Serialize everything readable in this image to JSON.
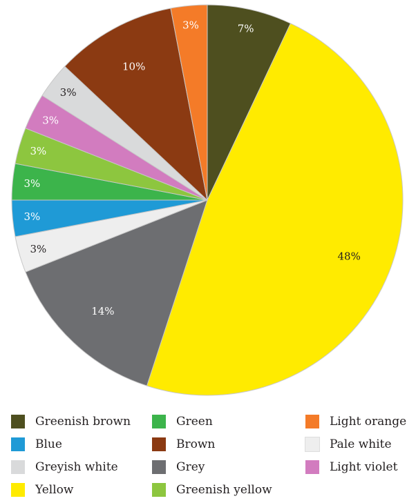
{
  "chart_data": {
    "type": "pie",
    "start_angle_deg": 0,
    "direction": "clockwise",
    "slices": [
      {
        "label": "Greenish brown",
        "value": 7,
        "display": "7%",
        "color": "#4e4f1f",
        "text_color": "#ffffff"
      },
      {
        "label": "Yellow",
        "value": 48,
        "display": "48%",
        "color": "#ffeb00",
        "text_color": "#231f20"
      },
      {
        "label": "Grey",
        "value": 14,
        "display": "14%",
        "color": "#6d6e71",
        "text_color": "#ffffff"
      },
      {
        "label": "Pale white",
        "value": 3,
        "display": "3%",
        "color": "#eeeeee",
        "text_color": "#231f20"
      },
      {
        "label": "Blue",
        "value": 3,
        "display": "3%",
        "color": "#1f9ad6",
        "text_color": "#ffffff"
      },
      {
        "label": "Green",
        "value": 3,
        "display": "3%",
        "color": "#3cb44b",
        "text_color": "#ffffff"
      },
      {
        "label": "Greenish yellow",
        "value": 3,
        "display": "3%",
        "color": "#8dc63f",
        "text_color": "#ffffff"
      },
      {
        "label": "Light violet",
        "value": 3,
        "display": "3%",
        "color": "#d27cbf",
        "text_color": "#ffffff"
      },
      {
        "label": "Greyish white",
        "value": 3,
        "display": "3%",
        "color": "#d9dadb",
        "text_color": "#231f20"
      },
      {
        "label": "Brown",
        "value": 10,
        "display": "10%",
        "color": "#8b3a12",
        "text_color": "#ffffff"
      },
      {
        "label": "Light orange",
        "value": 3,
        "display": "3%",
        "color": "#f47b28",
        "text_color": "#ffffff"
      }
    ],
    "legend_position": "bottom",
    "legend": [
      {
        "label": "Greenish brown",
        "color": "#4e4f1f"
      },
      {
        "label": "Green",
        "color": "#3cb44b"
      },
      {
        "label": "Light orange",
        "color": "#f47b28"
      },
      {
        "label": "Blue",
        "color": "#1f9ad6"
      },
      {
        "label": "Brown",
        "color": "#8b3a12"
      },
      {
        "label": "Pale white",
        "color": "#eeeeee"
      },
      {
        "label": "Greyish white",
        "color": "#d9dadb"
      },
      {
        "label": "Grey",
        "color": "#6d6e71"
      },
      {
        "label": "Light violet",
        "color": "#d27cbf"
      },
      {
        "label": "Yellow",
        "color": "#ffeb00"
      },
      {
        "label": "Greenish yellow",
        "color": "#8dc63f"
      }
    ]
  }
}
